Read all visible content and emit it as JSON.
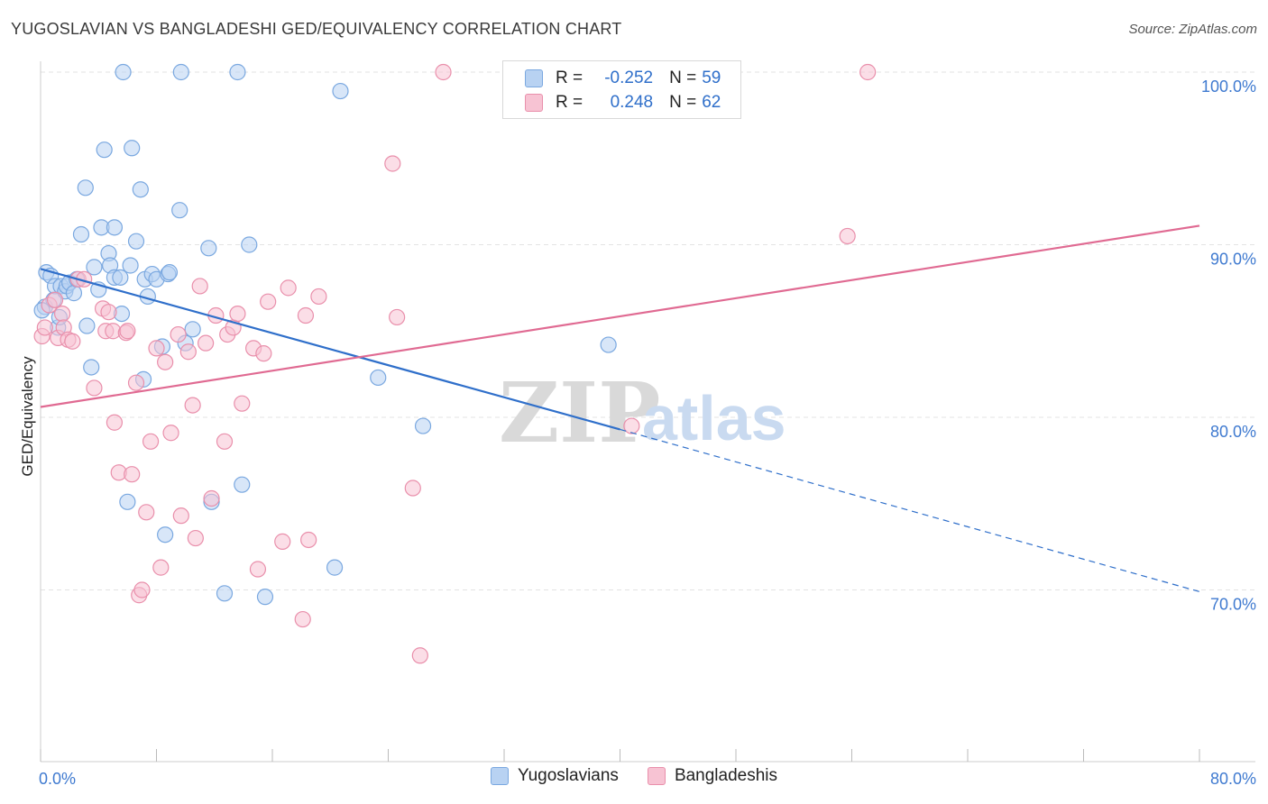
{
  "header": {
    "title": "YUGOSLAVIAN VS BANGLADESHI GED/EQUIVALENCY CORRELATION CHART",
    "source": "Source: ZipAtlas.com"
  },
  "legend": {
    "rows": [
      {
        "r_label": "R =",
        "r_value": "-0.252",
        "n_label": "N =",
        "n_value": "59"
      },
      {
        "r_label": "R =",
        "r_value": "0.248",
        "n_label": "N =",
        "n_value": "62"
      }
    ],
    "bottom": [
      "Yugoslavians",
      "Bangladeshis"
    ]
  },
  "watermark": {
    "zip": "ZIP",
    "atlas": "atlas"
  },
  "colors": {
    "blue_fill": "#b8d2f2",
    "blue_stroke": "#7aa8e0",
    "blue_line": "#2f6fca",
    "pink_fill": "#f7c3d3",
    "pink_stroke": "#e98fab",
    "pink_line": "#e06a92",
    "grid": "#e3e3e3",
    "axis_label": "#3f7ad0"
  },
  "chart_data": {
    "type": "scatter",
    "title": "YUGOSLAVIAN VS BANGLADESHI GED/EQUIVALENCY CORRELATION CHART",
    "xlabel": "",
    "ylabel": "GED/Equivalency",
    "xlim": [
      0,
      80
    ],
    "ylim": [
      60,
      100
    ],
    "x_tick_labels": [
      "0.0%",
      "80.0%"
    ],
    "y_ticks": [
      70,
      80,
      90,
      100
    ],
    "y_tick_labels": [
      "70.0%",
      "80.0%",
      "90.0%",
      "100.0%"
    ],
    "grid": "horizontal dashed",
    "series": [
      {
        "name": "Yugoslavians",
        "color": "#7aa8e0",
        "r": -0.252,
        "n": 59,
        "trend": {
          "x0": 0,
          "y0": 88.6,
          "x1": 40,
          "y1": 79.3,
          "dash_to_x": 80,
          "dash_to_y": 69.9
        },
        "points": [
          [
            0.3,
            86.4
          ],
          [
            0.4,
            88.4
          ],
          [
            0.7,
            88.2
          ],
          [
            0.9,
            86.8
          ],
          [
            1.0,
            87.6
          ],
          [
            1.2,
            85.2
          ],
          [
            1.3,
            85.8
          ],
          [
            1.4,
            87.6
          ],
          [
            1.7,
            87.3
          ],
          [
            1.8,
            87.6
          ],
          [
            2.0,
            87.8
          ],
          [
            2.3,
            87.2
          ],
          [
            2.5,
            88.0
          ],
          [
            2.8,
            90.6
          ],
          [
            3.1,
            93.3
          ],
          [
            3.2,
            85.3
          ],
          [
            3.5,
            82.9
          ],
          [
            3.7,
            88.7
          ],
          [
            4.0,
            87.4
          ],
          [
            4.2,
            91.0
          ],
          [
            4.4,
            95.5
          ],
          [
            4.7,
            89.5
          ],
          [
            4.8,
            88.8
          ],
          [
            5.1,
            91.0
          ],
          [
            5.1,
            88.1
          ],
          [
            5.5,
            88.1
          ],
          [
            5.6,
            86.0
          ],
          [
            5.7,
            100.0
          ],
          [
            6.0,
            75.1
          ],
          [
            6.2,
            88.8
          ],
          [
            6.3,
            95.6
          ],
          [
            6.6,
            90.2
          ],
          [
            6.9,
            93.2
          ],
          [
            7.1,
            82.2
          ],
          [
            7.2,
            88.0
          ],
          [
            7.4,
            87.0
          ],
          [
            7.7,
            88.3
          ],
          [
            8.0,
            88.0
          ],
          [
            8.4,
            84.1
          ],
          [
            8.6,
            73.2
          ],
          [
            8.8,
            88.3
          ],
          [
            8.9,
            88.4
          ],
          [
            9.6,
            92.0
          ],
          [
            9.7,
            100.0
          ],
          [
            10.0,
            84.3
          ],
          [
            10.5,
            85.1
          ],
          [
            11.6,
            89.8
          ],
          [
            11.8,
            75.1
          ],
          [
            12.7,
            69.8
          ],
          [
            13.6,
            100.0
          ],
          [
            13.9,
            76.1
          ],
          [
            14.4,
            90.0
          ],
          [
            15.5,
            69.6
          ],
          [
            20.3,
            71.3
          ],
          [
            20.7,
            98.9
          ],
          [
            23.3,
            82.3
          ],
          [
            26.4,
            79.5
          ],
          [
            39.2,
            84.2
          ],
          [
            0.1,
            86.2
          ]
        ]
      },
      {
        "name": "Bangladeshis",
        "color": "#e98fab",
        "r": 0.248,
        "n": 62,
        "trend": {
          "x0": 0,
          "y0": 80.6,
          "x1": 80,
          "y1": 91.1
        },
        "points": [
          [
            0.1,
            84.7
          ],
          [
            0.3,
            85.2
          ],
          [
            0.6,
            86.5
          ],
          [
            1.0,
            86.8
          ],
          [
            1.2,
            84.6
          ],
          [
            1.5,
            86.0
          ],
          [
            1.6,
            85.2
          ],
          [
            1.9,
            84.5
          ],
          [
            2.2,
            84.4
          ],
          [
            2.6,
            88.0
          ],
          [
            3.0,
            88.0
          ],
          [
            3.7,
            81.7
          ],
          [
            4.3,
            86.3
          ],
          [
            4.5,
            85.0
          ],
          [
            4.7,
            86.1
          ],
          [
            5.0,
            85.0
          ],
          [
            5.1,
            79.7
          ],
          [
            5.4,
            76.8
          ],
          [
            5.9,
            84.9
          ],
          [
            6.0,
            85.0
          ],
          [
            6.3,
            76.7
          ],
          [
            6.6,
            82.0
          ],
          [
            6.8,
            69.7
          ],
          [
            7.0,
            70.0
          ],
          [
            7.3,
            74.5
          ],
          [
            7.6,
            78.6
          ],
          [
            8.0,
            84.0
          ],
          [
            8.3,
            71.3
          ],
          [
            8.6,
            83.2
          ],
          [
            9.0,
            79.1
          ],
          [
            9.5,
            84.8
          ],
          [
            9.7,
            74.3
          ],
          [
            10.2,
            83.8
          ],
          [
            10.5,
            80.7
          ],
          [
            10.7,
            73.0
          ],
          [
            11.0,
            87.6
          ],
          [
            11.4,
            84.3
          ],
          [
            11.8,
            75.3
          ],
          [
            12.1,
            85.9
          ],
          [
            12.7,
            78.6
          ],
          [
            12.9,
            84.8
          ],
          [
            13.3,
            85.2
          ],
          [
            13.6,
            86.0
          ],
          [
            13.9,
            80.8
          ],
          [
            14.7,
            84.0
          ],
          [
            15.0,
            71.2
          ],
          [
            15.4,
            83.7
          ],
          [
            15.7,
            86.7
          ],
          [
            16.7,
            72.8
          ],
          [
            17.1,
            87.5
          ],
          [
            18.1,
            68.3
          ],
          [
            18.3,
            85.9
          ],
          [
            18.5,
            72.9
          ],
          [
            19.2,
            87.0
          ],
          [
            24.6,
            85.8
          ],
          [
            24.3,
            94.7
          ],
          [
            25.7,
            75.9
          ],
          [
            26.2,
            66.2
          ],
          [
            27.8,
            100.0
          ],
          [
            40.8,
            79.5
          ],
          [
            55.7,
            90.5
          ],
          [
            57.1,
            100.0
          ]
        ]
      }
    ]
  }
}
